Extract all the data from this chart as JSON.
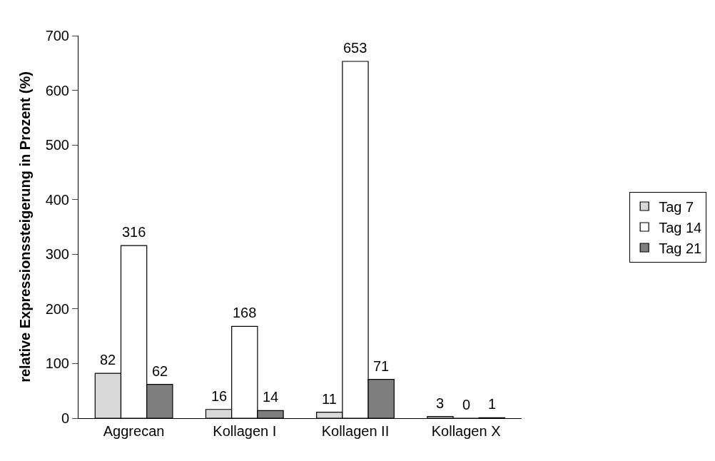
{
  "chart_data": {
    "type": "bar",
    "ylabel": "relative Expressionssteigerung in Prozent (%)",
    "categories": [
      "Aggrecan",
      "Kollagen I",
      "Kollagen II",
      "Kollagen X"
    ],
    "series": [
      {
        "name": "Tag 7",
        "color": "#d9d9d9",
        "values": [
          82,
          16,
          11,
          3
        ]
      },
      {
        "name": "Tag 14",
        "color": "#ffffff",
        "values": [
          316,
          168,
          653,
          0
        ]
      },
      {
        "name": "Tag 21",
        "color": "#7f7f7f",
        "values": [
          62,
          14,
          71,
          1
        ]
      }
    ],
    "ylim": [
      0,
      700
    ],
    "yticks": [
      0,
      100,
      200,
      300,
      400,
      500,
      600,
      700
    ],
    "legend": "right",
    "data_labels": true
  }
}
